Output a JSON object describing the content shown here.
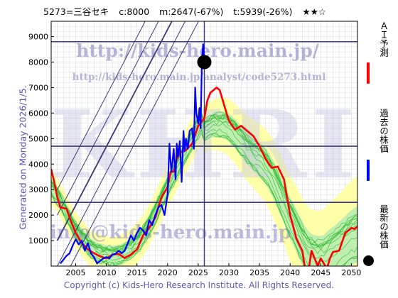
{
  "header": {
    "code_name": "5273=三谷セキ",
    "current": "c:8000",
    "max_info": "m:2647(-67%)",
    "target_info": "t:5939(-26%)",
    "stars": "★★☆"
  },
  "side_note": "Generated on Monday 2026/1/5.",
  "footer": "Copyright (c) Kids-Hero Research Institute. All Rights Reserved.",
  "watermark": {
    "url1": "http://kids-hero.main.jp/",
    "url2": "http://kids-hero.main.jp/analyst/code5273.html",
    "big": "KHRI",
    "mail": "info@kids-hero.main.jp"
  },
  "legend": [
    {
      "label": "ＡＩ予測",
      "color": "#ff0000",
      "kind": "line"
    },
    {
      "label": "過去の株価",
      "color": "#0000ff",
      "kind": "line"
    },
    {
      "label": "最新の株価",
      "color": "#000000",
      "kind": "dot"
    }
  ],
  "colors": {
    "prediction": "#ff0000",
    "price": "#0000ff",
    "trend": "#3a3a78",
    "band_outer": "#ffffa8",
    "band_inner": "#b8ecb0",
    "ensemble": "#33bb33"
  },
  "chart_data": {
    "type": "line",
    "xlim": [
      2001,
      2051
    ],
    "ylim": [
      0,
      9600
    ],
    "x_ticks": [
      2005,
      2010,
      2015,
      2020,
      2025,
      2030,
      2035,
      2040,
      2045,
      2050
    ],
    "y_ticks": [
      1000,
      2000,
      3000,
      4000,
      5000,
      6000,
      7000,
      8000,
      9000
    ],
    "grid": true,
    "legend_position": "right",
    "series": [
      {
        "name": "ＡＩ予測",
        "points": [
          [
            2001,
            3800
          ],
          [
            2001.5,
            3300
          ],
          [
            2002,
            2700
          ],
          [
            2002.5,
            2300
          ],
          [
            2003.5,
            2250
          ],
          [
            2004,
            1900
          ],
          [
            2005,
            1300
          ],
          [
            2006,
            900
          ],
          [
            2007,
            650
          ],
          [
            2008,
            500
          ],
          [
            2009,
            380
          ],
          [
            2010,
            300
          ],
          [
            2011,
            450
          ],
          [
            2012,
            480
          ],
          [
            2013,
            320
          ],
          [
            2014,
            450
          ],
          [
            2015,
            650
          ],
          [
            2016,
            1200
          ],
          [
            2017,
            1500
          ],
          [
            2018,
            1900
          ],
          [
            2019,
            2700
          ],
          [
            2020,
            3100
          ],
          [
            2020.5,
            3700
          ],
          [
            2021,
            3700
          ],
          [
            2021.5,
            4200
          ],
          [
            2022,
            4450
          ],
          [
            2023,
            4550
          ],
          [
            2024,
            4800
          ],
          [
            2025,
            5500
          ],
          [
            2026,
            5800
          ],
          [
            2026.5,
            6500
          ],
          [
            2027,
            6800
          ],
          [
            2028,
            7000
          ],
          [
            2028.5,
            6900
          ],
          [
            2029,
            6500
          ],
          [
            2030,
            5700
          ],
          [
            2031,
            5350
          ],
          [
            2032,
            5500
          ],
          [
            2033,
            5300
          ],
          [
            2034,
            5100
          ],
          [
            2035,
            4700
          ],
          [
            2036,
            4200
          ],
          [
            2037,
            3850
          ],
          [
            2038,
            3900
          ],
          [
            2039,
            3400
          ],
          [
            2040,
            2000
          ],
          [
            2041,
            1100
          ],
          [
            2042,
            600
          ],
          [
            2042.5,
            -200
          ],
          [
            2043,
            -200
          ],
          [
            2043.5,
            600
          ],
          [
            2044,
            300
          ],
          [
            2044.5,
            0
          ],
          [
            2045,
            300
          ],
          [
            2046,
            -100
          ],
          [
            2046.5,
            300
          ],
          [
            2047,
            550
          ],
          [
            2048,
            600
          ],
          [
            2049,
            1300
          ],
          [
            2050,
            1500
          ],
          [
            2050.5,
            1450
          ],
          [
            2051,
            1550
          ]
        ]
      },
      {
        "name": "過去の株価",
        "points": [
          [
            2002.5,
            100
          ],
          [
            2003.5,
            400
          ],
          [
            2004,
            500
          ],
          [
            2004.5,
            800
          ],
          [
            2005,
            1050
          ],
          [
            2005.5,
            850
          ],
          [
            2006,
            1000
          ],
          [
            2006.5,
            600
          ],
          [
            2007,
            900
          ],
          [
            2007.5,
            500
          ],
          [
            2008,
            350
          ],
          [
            2008.5,
            100
          ],
          [
            2009,
            200
          ],
          [
            2009.5,
            300
          ],
          [
            2010,
            350
          ],
          [
            2010.5,
            300
          ],
          [
            2011,
            450
          ],
          [
            2011.5,
            480
          ],
          [
            2012,
            600
          ],
          [
            2012.5,
            500
          ],
          [
            2013,
            600
          ],
          [
            2013.5,
            900
          ],
          [
            2014,
            1200
          ],
          [
            2014.5,
            1000
          ],
          [
            2015,
            1300
          ],
          [
            2015.5,
            1500
          ],
          [
            2016,
            1400
          ],
          [
            2016.5,
            1200
          ],
          [
            2017,
            1800
          ],
          [
            2017.5,
            1600
          ],
          [
            2018,
            2000
          ],
          [
            2018.5,
            2300
          ],
          [
            2019,
            2400
          ],
          [
            2019.5,
            2000
          ],
          [
            2020,
            2800
          ],
          [
            2020.3,
            4800
          ],
          [
            2020.6,
            3700
          ],
          [
            2020.8,
            4100
          ],
          [
            2021,
            4600
          ],
          [
            2021.3,
            3400
          ],
          [
            2021.5,
            4800
          ],
          [
            2021.7,
            4300
          ],
          [
            2022,
            4900
          ],
          [
            2022.3,
            3300
          ],
          [
            2022.6,
            5300
          ],
          [
            2022.8,
            4500
          ],
          [
            2023,
            5000
          ],
          [
            2023.3,
            4600
          ],
          [
            2023.6,
            5300
          ],
          [
            2024,
            5400
          ],
          [
            2024.3,
            4600
          ],
          [
            2024.5,
            7000
          ],
          [
            2024.7,
            6000
          ],
          [
            2025,
            5600
          ],
          [
            2025.2,
            6200
          ],
          [
            2025.4,
            5400
          ],
          [
            2025.6,
            8100
          ],
          [
            2025.8,
            8700
          ],
          [
            2026,
            7900
          ]
        ]
      }
    ],
    "latest_point": {
      "x": 2026,
      "y": 8000
    },
    "horizontal_lines": [
      8800,
      4700,
      2500
    ],
    "vertical_line_x": 2026,
    "trend_line_intercepts": [
      -1000,
      0,
      1000,
      2000,
      3000
    ],
    "trend_slope_per_year": 460
  }
}
